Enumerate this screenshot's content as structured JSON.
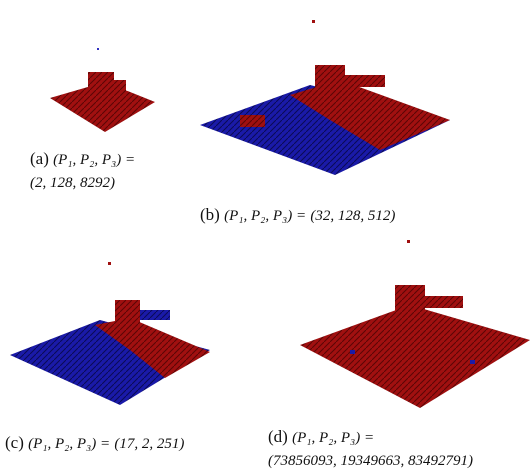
{
  "figures": [
    {
      "label": "(a)",
      "lhs": "(P₁, P₂, P₃) =",
      "rhs": "(2, 128, 8292)"
    },
    {
      "label": "(b)",
      "lhs": "(P₁, P₂, P₃) =",
      "rhs": "(32, 128, 512)"
    },
    {
      "label": "(c)",
      "lhs": "(P₁, P₂, P₃) =",
      "rhs": "(17, 2, 251)"
    },
    {
      "label": "(d)",
      "lhs": "(P₁, P₂, P₃) =",
      "rhs": "(73856093, 19349663, 83492791)"
    }
  ]
}
